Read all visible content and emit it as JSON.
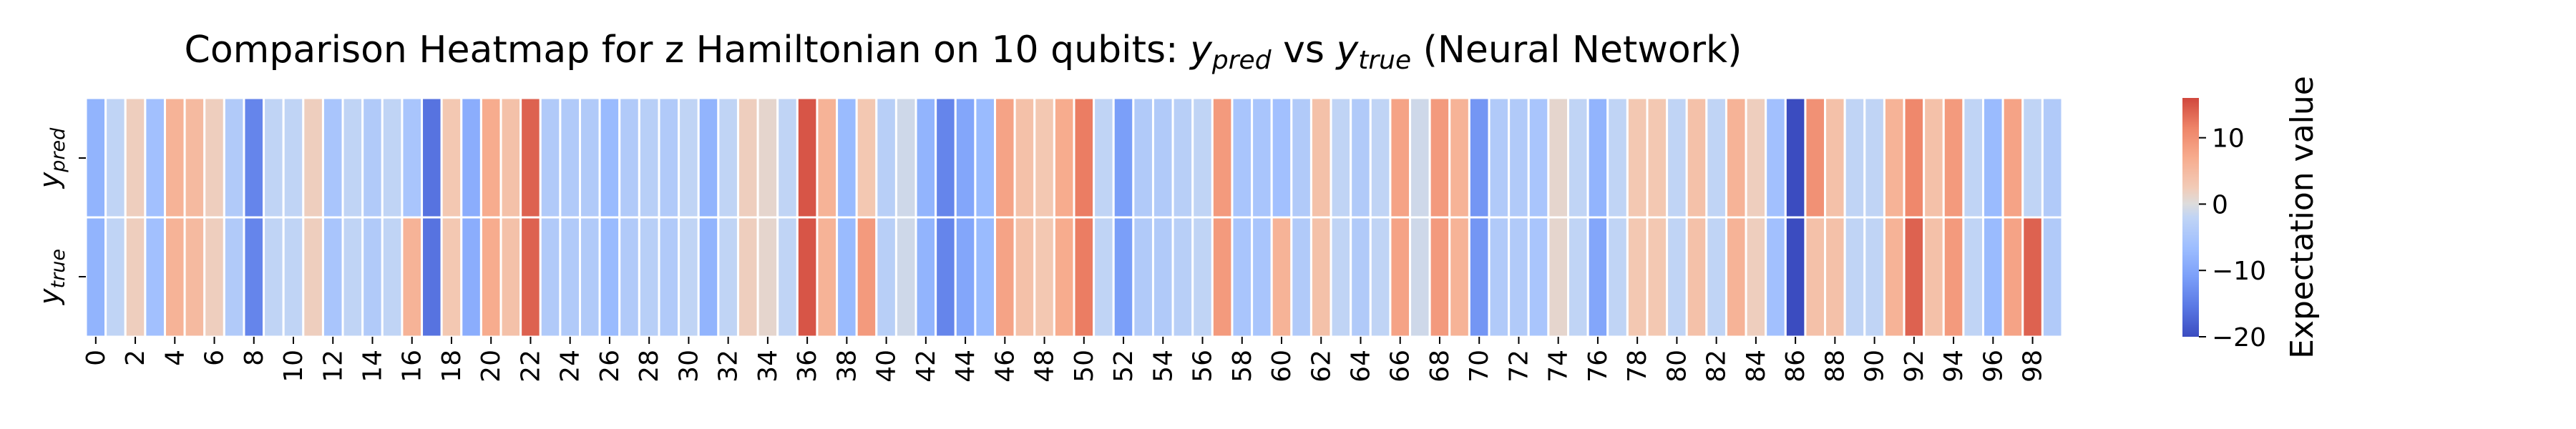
{
  "chart_data": {
    "type": "heatmap",
    "title_main": "Comparison Heatmap for z Hamiltonian on 10 qubits: ",
    "title_var1": "y",
    "title_sub1": "pred",
    "title_vs": " vs ",
    "title_var2": "y",
    "title_sub2": "true",
    "title_tail": " (Neural Network)",
    "rows": [
      {
        "var": "y",
        "sub": "pred"
      },
      {
        "var": "y",
        "sub": "true"
      }
    ],
    "xtick_labels": [
      "0",
      "2",
      "4",
      "6",
      "8",
      "10",
      "12",
      "14",
      "16",
      "18",
      "20",
      "22",
      "24",
      "26",
      "28",
      "30",
      "32",
      "34",
      "36",
      "38",
      "40",
      "42",
      "44",
      "46",
      "48",
      "50",
      "52",
      "54",
      "56",
      "58",
      "60",
      "62",
      "64",
      "66",
      "68",
      "70",
      "72",
      "74",
      "76",
      "78",
      "80",
      "82",
      "84",
      "86",
      "88",
      "90",
      "92",
      "94",
      "96",
      "98"
    ],
    "colorbar": {
      "label": "Expectation value",
      "vmin": -20,
      "vmax": 16,
      "ticks": [
        "10",
        "0",
        "−10",
        "−20"
      ],
      "tick_values": [
        10,
        0,
        -10,
        -20
      ]
    },
    "values": [
      [
        -8,
        -2,
        2,
        -6,
        6,
        5,
        2,
        -4,
        -14,
        -2,
        -2,
        2,
        -5,
        -2,
        -4,
        -2,
        -5,
        -16,
        3,
        -9,
        7,
        4,
        14,
        -4,
        -4,
        -4,
        -7,
        -4,
        -3,
        -4,
        -2,
        -8,
        -2,
        2,
        1,
        -2,
        15,
        6,
        -7,
        3,
        -3,
        -1,
        -8,
        -14,
        -10,
        -7,
        8,
        4,
        3,
        7,
        12,
        -2,
        -11,
        -4,
        -4,
        -3,
        -2,
        9,
        -5,
        -5,
        -6,
        -4,
        4,
        -2,
        -4,
        -2,
        8,
        -1,
        9,
        6,
        -12,
        -4,
        -4,
        -5,
        1,
        -2,
        -8,
        -2,
        3,
        3,
        -2,
        4,
        -2,
        6,
        2,
        -6,
        -20,
        10,
        4,
        -2,
        -2,
        6,
        11,
        4,
        9,
        -2,
        -7,
        8,
        -2,
        -4
      ],
      [
        -8,
        -2,
        2,
        -6,
        6,
        5,
        2,
        -4,
        -14,
        -2,
        -2,
        2,
        -5,
        -2,
        -4,
        -2,
        6,
        -16,
        3,
        -9,
        7,
        4,
        14,
        -4,
        -4,
        -4,
        -7,
        -4,
        -3,
        -4,
        -2,
        -8,
        -2,
        2,
        1,
        -2,
        15,
        6,
        -7,
        9,
        -3,
        -1,
        -8,
        -14,
        -10,
        -7,
        8,
        4,
        3,
        7,
        12,
        -2,
        -11,
        -4,
        -4,
        -3,
        -2,
        9,
        -5,
        -5,
        6,
        -4,
        4,
        -2,
        -4,
        -2,
        8,
        -1,
        9,
        6,
        -12,
        -4,
        -4,
        -5,
        1,
        -2,
        -10,
        -2,
        3,
        3,
        -2,
        4,
        -2,
        6,
        2,
        -6,
        -20,
        4,
        4,
        -2,
        -2,
        6,
        14,
        4,
        9,
        -2,
        -7,
        8,
        14,
        -4
      ]
    ]
  }
}
